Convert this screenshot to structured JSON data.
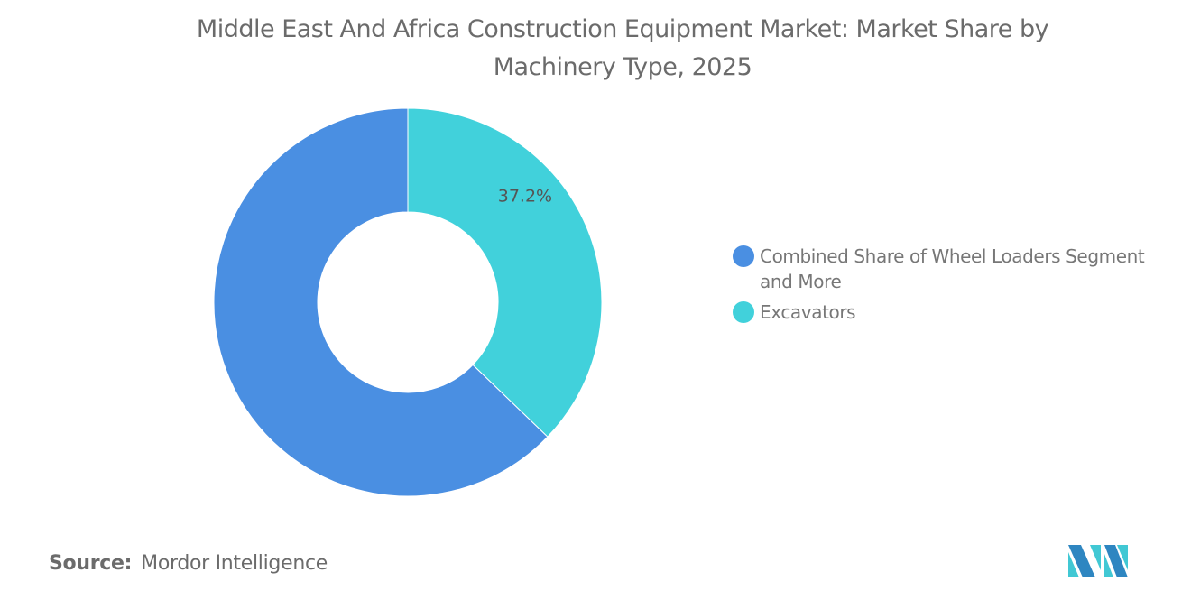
{
  "chart_data": {
    "type": "pie",
    "donut": true,
    "title_lines": [
      "Middle East And Africa Construction Equipment Market: Market Share by",
      "Machinery Type, 2025"
    ],
    "categories": [
      "Combined Share of Wheel Loaders Segment and More",
      "Excavators"
    ],
    "values": [
      62.8,
      37.2
    ],
    "colors": [
      "#4A8FE2",
      "#41D1DB"
    ],
    "data_labels": [
      "",
      "37.2%"
    ],
    "legend_position": "right"
  },
  "source": {
    "label": "Source:",
    "value": "Mordor Intelligence"
  },
  "logo": {
    "name": "mordor-intelligence-logo",
    "colors": [
      "#2E86C1",
      "#41C8D4"
    ]
  }
}
